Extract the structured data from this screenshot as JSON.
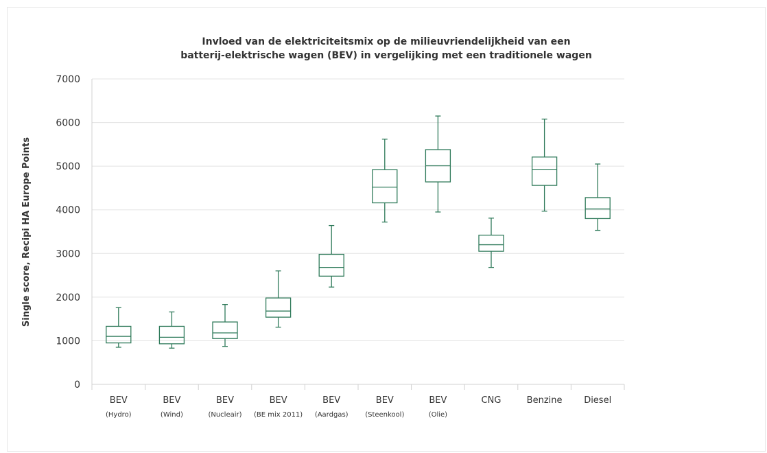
{
  "chart_data": {
    "type": "box",
    "title": [
      "Invloed van de elektriciteitsmix op de milieuvriendelijkheid van een",
      "batterij-elektrische wagen (BEV) in vergelijking met een traditionele wagen"
    ],
    "ylabel": "Single score, Recipi HA Europe Points",
    "xlabel": "",
    "ylim": [
      0,
      7000
    ],
    "yticks": [
      0,
      1000,
      2000,
      3000,
      4000,
      5000,
      6000,
      7000
    ],
    "grid": true,
    "categories": [
      {
        "label": "BEV",
        "sub": "(Hydro)"
      },
      {
        "label": "BEV",
        "sub": "(Wind)"
      },
      {
        "label": "BEV",
        "sub": "(Nucleair)"
      },
      {
        "label": "BEV",
        "sub": "(BE mix 2011)"
      },
      {
        "label": "BEV",
        "sub": "(Aardgas)"
      },
      {
        "label": "BEV",
        "sub": "(Steenkool)"
      },
      {
        "label": "BEV",
        "sub": "(Olie)"
      },
      {
        "label": "CNG",
        "sub": ""
      },
      {
        "label": "Benzine",
        "sub": ""
      },
      {
        "label": "Diesel",
        "sub": ""
      }
    ],
    "boxes": [
      {
        "min": 850,
        "q1": 950,
        "median": 1100,
        "q3": 1330,
        "max": 1760
      },
      {
        "min": 830,
        "q1": 930,
        "median": 1080,
        "q3": 1330,
        "max": 1660
      },
      {
        "min": 870,
        "q1": 1050,
        "median": 1180,
        "q3": 1430,
        "max": 1830
      },
      {
        "min": 1310,
        "q1": 1540,
        "median": 1680,
        "q3": 1980,
        "max": 2600
      },
      {
        "min": 2230,
        "q1": 2480,
        "median": 2680,
        "q3": 2980,
        "max": 3640
      },
      {
        "min": 3720,
        "q1": 4160,
        "median": 4520,
        "q3": 4920,
        "max": 5620
      },
      {
        "min": 3950,
        "q1": 4640,
        "median": 5010,
        "q3": 5380,
        "max": 6150
      },
      {
        "min": 2680,
        "q1": 3050,
        "median": 3200,
        "q3": 3420,
        "max": 3810
      },
      {
        "min": 3970,
        "q1": 4560,
        "median": 4930,
        "q3": 5210,
        "max": 6080
      },
      {
        "min": 3530,
        "q1": 3800,
        "median": 4020,
        "q3": 4280,
        "max": 5050
      }
    ],
    "colors": {
      "box_stroke": "#2f7a5a",
      "grid": "#e3e3e3",
      "axis": "#d0d0d0",
      "text": "#333333"
    }
  }
}
